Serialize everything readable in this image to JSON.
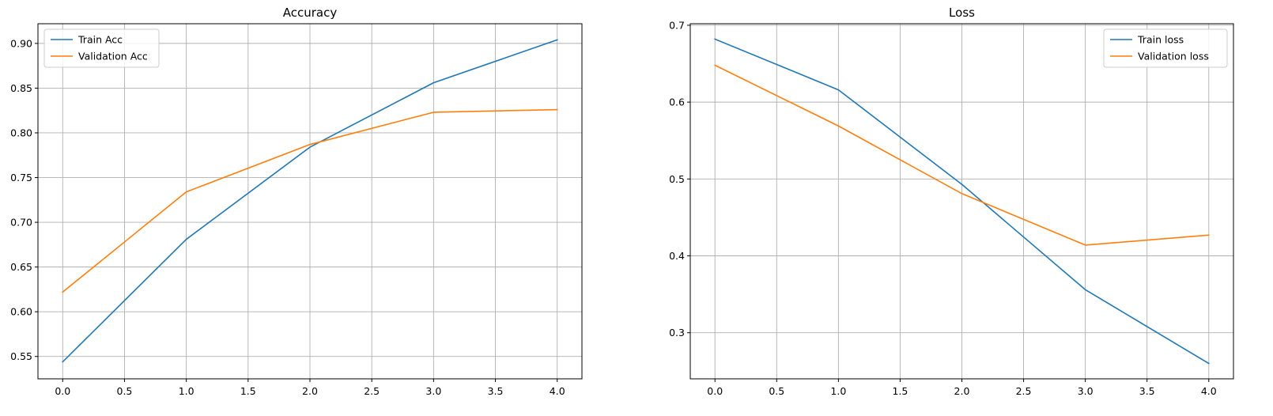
{
  "chart_data": [
    {
      "type": "line",
      "title": "Accuracy",
      "xlabel": "",
      "ylabel": "",
      "x": [
        0,
        1,
        2,
        3,
        4
      ],
      "xlim": [
        -0.2,
        4.2
      ],
      "ylim": [
        0.525,
        0.922
      ],
      "xticks": [
        0.0,
        0.5,
        1.0,
        1.5,
        2.0,
        2.5,
        3.0,
        3.5,
        4.0
      ],
      "yticks": [
        0.55,
        0.6,
        0.65,
        0.7,
        0.75,
        0.8,
        0.85,
        0.9
      ],
      "grid": true,
      "legend_position": "upper-left",
      "series": [
        {
          "name": "Train Acc",
          "color": "#1f77b4",
          "values": [
            0.544,
            0.681,
            0.784,
            0.856,
            0.904
          ]
        },
        {
          "name": "Validation Acc",
          "color": "#ff7f0e",
          "values": [
            0.622,
            0.734,
            0.787,
            0.823,
            0.826
          ]
        }
      ]
    },
    {
      "type": "line",
      "title": "Loss",
      "xlabel": "",
      "ylabel": "",
      "x": [
        0,
        1,
        2,
        3,
        4
      ],
      "xlim": [
        -0.2,
        4.2
      ],
      "ylim": [
        0.24,
        0.702
      ],
      "xticks": [
        0.0,
        0.5,
        1.0,
        1.5,
        2.0,
        2.5,
        3.0,
        3.5,
        4.0
      ],
      "yticks": [
        0.3,
        0.4,
        0.5,
        0.6,
        0.7
      ],
      "grid": true,
      "legend_position": "upper-right",
      "series": [
        {
          "name": "Train loss",
          "color": "#1f77b4",
          "values": [
            0.682,
            0.616,
            0.493,
            0.356,
            0.26
          ]
        },
        {
          "name": "Validation loss",
          "color": "#ff7f0e",
          "values": [
            0.648,
            0.569,
            0.481,
            0.414,
            0.427
          ]
        }
      ]
    }
  ]
}
